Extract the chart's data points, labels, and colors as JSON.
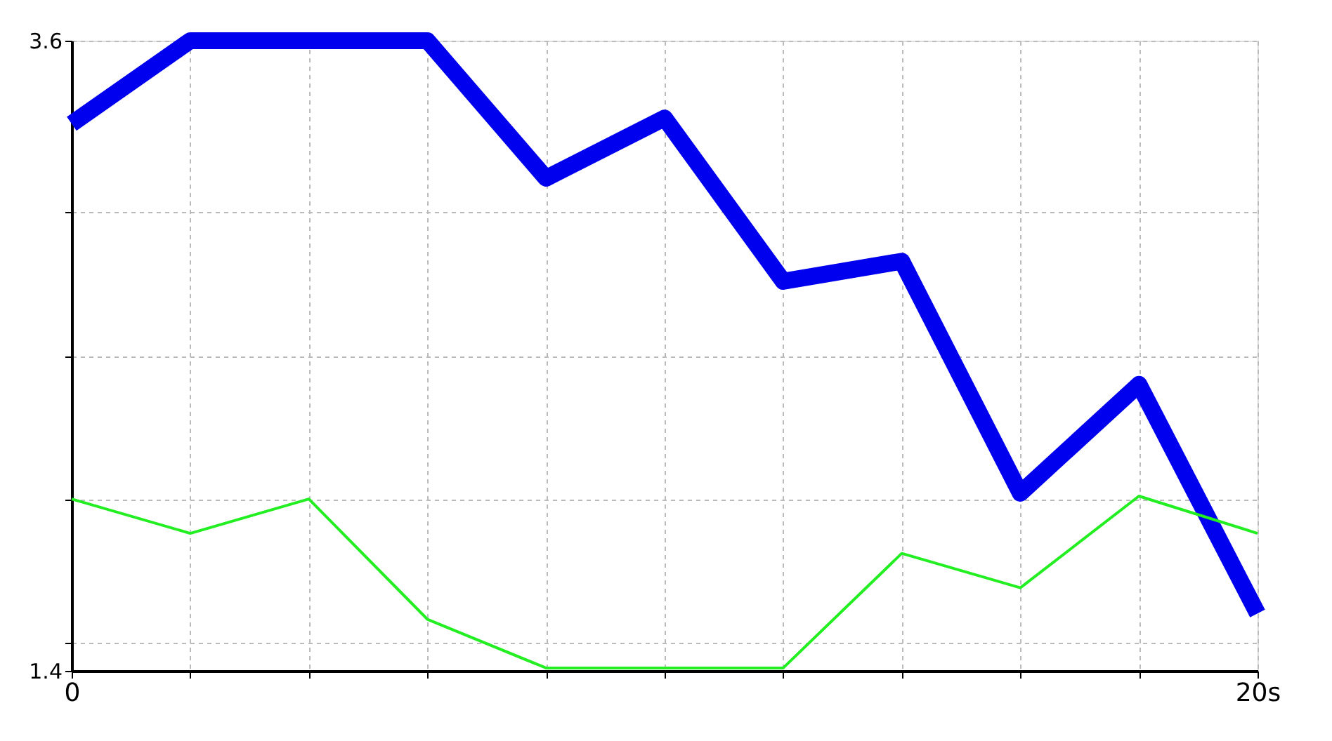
{
  "chart_data": {
    "type": "line",
    "x": [
      0,
      2,
      4,
      6,
      8,
      10,
      12,
      14,
      16,
      18,
      20
    ],
    "series": [
      {
        "color": "#0000ee",
        "values": [
          3.31,
          3.6,
          3.6,
          3.6,
          3.12,
          3.33,
          2.76,
          2.83,
          2.02,
          2.4,
          1.6
        ]
      },
      {
        "color": "#22ee22",
        "values": [
          2.0,
          1.88,
          2.0,
          1.58,
          1.41,
          1.41,
          1.41,
          1.81,
          1.69,
          2.01,
          1.88
        ]
      }
    ],
    "xlim": [
      0,
      20
    ],
    "xticks": [
      {
        "value": 0,
        "label": "0"
      },
      {
        "value": 2,
        "label": null
      },
      {
        "value": 4,
        "label": null
      },
      {
        "value": 6,
        "label": null
      },
      {
        "value": 8,
        "label": null
      },
      {
        "value": 10,
        "label": null
      },
      {
        "value": 12,
        "label": null
      },
      {
        "value": 14,
        "label": null
      },
      {
        "value": 16,
        "label": null
      },
      {
        "value": 18,
        "label": null
      },
      {
        "value": 20,
        "label": "20s"
      }
    ],
    "ylim": [
      1.4,
      3.6
    ],
    "yticks": [
      1.4,
      {
        "value": 1.5,
        "label": null
      },
      {
        "value": 2,
        "label": null
      },
      {
        "value": 2.5,
        "label": null
      },
      {
        "value": 3,
        "label": null
      },
      3.6
    ],
    "grid": true,
    "marker": "none",
    "line_style": "solid"
  }
}
